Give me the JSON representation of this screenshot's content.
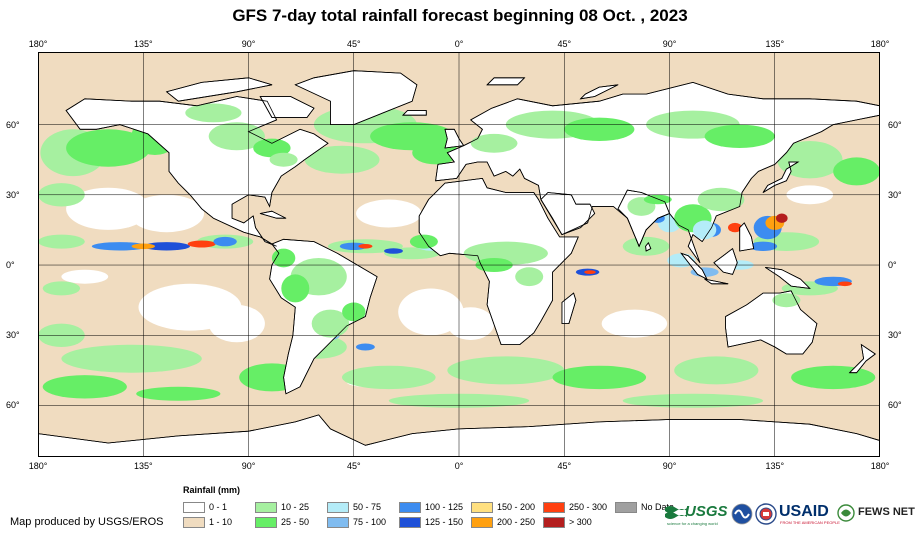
{
  "title": "GFS 7-day total rainfall forecast beginning 08 Oct. , 2023",
  "axes": {
    "longitude_ticks": [
      {
        "lon": -180,
        "label": "180°"
      },
      {
        "lon": -135,
        "label": "135°"
      },
      {
        "lon": -90,
        "label": "90°"
      },
      {
        "lon": -45,
        "label": "45°"
      },
      {
        "lon": 0,
        "label": "0°"
      },
      {
        "lon": 45,
        "label": "45°"
      },
      {
        "lon": 90,
        "label": "90°"
      },
      {
        "lon": 135,
        "label": "135°"
      },
      {
        "lon": 180,
        "label": "180°"
      }
    ],
    "latitude_ticks": [
      {
        "lat": 60,
        "label": "60°"
      },
      {
        "lat": 30,
        "label": "30°"
      },
      {
        "lat": 0,
        "label": "0°"
      },
      {
        "lat": -30,
        "label": "30°"
      },
      {
        "lat": -60,
        "label": "60°"
      }
    ],
    "lon_range": [
      -180,
      180
    ],
    "lat_range": [
      -82,
      91
    ]
  },
  "legend": {
    "title": "Rainfall (mm)",
    "items": [
      {
        "label": "0 - 1",
        "color": "#ffffff"
      },
      {
        "label": "1 - 10",
        "color": "#f0dcc0"
      },
      {
        "label": "10 - 25",
        "color": "#a6f0a0"
      },
      {
        "label": "25 - 50",
        "color": "#66ee66"
      },
      {
        "label": "50 - 75",
        "color": "#b4ecf8"
      },
      {
        "label": "75 - 100",
        "color": "#80bcf0"
      },
      {
        "label": "100 - 125",
        "color": "#3c8cf0"
      },
      {
        "label": "125 - 150",
        "color": "#1e50d8"
      },
      {
        "label": "150 - 200",
        "color": "#ffe080"
      },
      {
        "label": "200 - 250",
        "color": "#ffa010"
      },
      {
        "label": "250 - 300",
        "color": "#ff4010"
      },
      {
        "label": "> 300",
        "color": "#b41e1e"
      },
      {
        "label": "No Data",
        "color": "#a0a0a0"
      }
    ]
  },
  "credit": "Map produced by USGS/EROS",
  "logos": {
    "usgs": "USGS",
    "usgs_tagline": "science for a changing world",
    "usaid": "USAID",
    "usaid_tagline": "FROM THE AMERICAN PEOPLE",
    "fewsnet": "FEWS NET"
  },
  "colors": {
    "land_outline": "#000000",
    "grid": "#000000"
  }
}
